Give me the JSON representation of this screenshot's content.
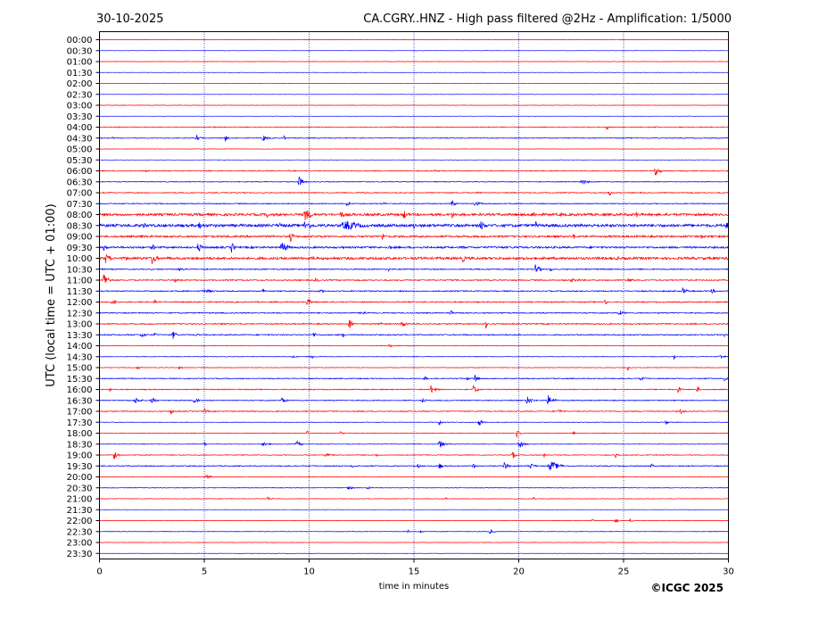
{
  "chart_data": {
    "type": "line",
    "date": "30-10-2025",
    "title": "CA.CGRY..HNZ - High pass filtered @2Hz - Amplification: 1/5000",
    "xlabel": "time in minutes",
    "ylabel": "UTC (local time = UTC + 01:00)",
    "copyright": "©ICGC 2025",
    "xlim": [
      0,
      30
    ],
    "x_ticks": [
      "0",
      "5",
      "10",
      "15",
      "20",
      "25",
      "30"
    ],
    "row_labels": [
      "00:00",
      "00:30",
      "01:00",
      "01:30",
      "02:00",
      "02:30",
      "03:00",
      "03:30",
      "04:00",
      "04:30",
      "05:00",
      "05:30",
      "06:00",
      "06:30",
      "07:00",
      "07:30",
      "08:00",
      "08:30",
      "09:00",
      "09:30",
      "10:00",
      "10:30",
      "11:00",
      "11:30",
      "12:00",
      "12:30",
      "13:00",
      "13:30",
      "14:00",
      "14:30",
      "15:00",
      "15:30",
      "16:00",
      "16:30",
      "17:00",
      "17:30",
      "18:00",
      "18:30",
      "19:00",
      "19:30",
      "20:00",
      "20:30",
      "21:00",
      "21:30",
      "22:00",
      "22:30",
      "23:00",
      "23:30"
    ],
    "trace_colors": [
      "#ff0000",
      "#0000ff"
    ],
    "grid": "vertical dotted at 5-minute intervals",
    "traces": [
      {
        "label": "00:00",
        "color": "#ff0000",
        "noise": 0.2,
        "events": []
      },
      {
        "label": "00:30",
        "color": "#0000ff",
        "noise": 0.2,
        "events": []
      },
      {
        "label": "01:00",
        "color": "#ff0000",
        "noise": 0.2,
        "events": []
      },
      {
        "label": "01:30",
        "color": "#0000ff",
        "noise": 0.2,
        "events": []
      },
      {
        "label": "02:00",
        "color": "#ff0000",
        "noise": 0.2,
        "events": []
      },
      {
        "label": "02:30",
        "color": "#0000ff",
        "noise": 0.2,
        "events": []
      },
      {
        "label": "03:00",
        "color": "#ff0000",
        "noise": 0.2,
        "events": []
      },
      {
        "label": "03:30",
        "color": "#0000ff",
        "noise": 0.2,
        "events": []
      },
      {
        "label": "04:00",
        "color": "#ff0000",
        "noise": 0.4,
        "events": [
          [
            0.9,
            0.3,
            1
          ],
          [
            5.5,
            0.3,
            1
          ],
          [
            14.0,
            0.5,
            1
          ],
          [
            24.2,
            0.1,
            4
          ],
          [
            26.5,
            0.3,
            1
          ]
        ]
      },
      {
        "label": "04:30",
        "color": "#0000ff",
        "noise": 0.4,
        "events": [
          [
            0.6,
            0.3,
            1
          ],
          [
            4.6,
            0.3,
            4
          ],
          [
            6.0,
            0.2,
            4
          ],
          [
            7.8,
            0.3,
            4
          ],
          [
            8.8,
            0.1,
            5
          ]
        ]
      },
      {
        "label": "05:00",
        "color": "#ff0000",
        "noise": 0.2,
        "events": []
      },
      {
        "label": "05:30",
        "color": "#0000ff",
        "noise": 0.2,
        "events": []
      },
      {
        "label": "06:00",
        "color": "#ff0000",
        "noise": 0.5,
        "events": [
          [
            2.2,
            0.6,
            1
          ],
          [
            5.2,
            0.3,
            1
          ],
          [
            9.0,
            0.4,
            1
          ],
          [
            16.0,
            1.0,
            1
          ],
          [
            26.5,
            0.4,
            5
          ]
        ]
      },
      {
        "label": "06:30",
        "color": "#0000ff",
        "noise": 0.4,
        "events": [
          [
            9.5,
            0.3,
            7
          ],
          [
            23.0,
            0.5,
            3
          ]
        ]
      },
      {
        "label": "07:00",
        "color": "#ff0000",
        "noise": 0.5,
        "events": [
          [
            12.5,
            1.0,
            1
          ],
          [
            18.0,
            1.0,
            1
          ],
          [
            24.3,
            0.2,
            5
          ]
        ]
      },
      {
        "label": "07:30",
        "color": "#0000ff",
        "noise": 0.5,
        "events": [
          [
            11.8,
            0.2,
            4
          ],
          [
            13.5,
            0.3,
            2
          ],
          [
            16.8,
            0.2,
            6
          ],
          [
            17.9,
            0.5,
            3
          ]
        ]
      },
      {
        "label": "08:00",
        "color": "#ff0000",
        "noise": 1.3,
        "events": [
          [
            8.0,
            0.2,
            4
          ],
          [
            9.8,
            0.5,
            8
          ],
          [
            11.5,
            0.3,
            5
          ],
          [
            14.5,
            0.3,
            6
          ],
          [
            16.8,
            0.3,
            5
          ],
          [
            20.7,
            0.2,
            5
          ],
          [
            22.0,
            0.2,
            4
          ],
          [
            25.6,
            0.2,
            4
          ]
        ]
      },
      {
        "label": "08:30",
        "color": "#0000ff",
        "noise": 1.5,
        "events": [
          [
            2.1,
            0.3,
            4
          ],
          [
            4.7,
            0.5,
            5
          ],
          [
            8.6,
            0.2,
            4
          ],
          [
            9.8,
            0.5,
            6
          ],
          [
            11.7,
            1.3,
            6
          ],
          [
            15.0,
            0.2,
            5
          ],
          [
            18.2,
            0.3,
            7
          ],
          [
            20.8,
            0.1,
            9
          ],
          [
            29.9,
            0.2,
            5
          ]
        ]
      },
      {
        "label": "09:00",
        "color": "#ff0000",
        "noise": 1.0,
        "events": [
          [
            2.0,
            0.2,
            4
          ],
          [
            9.1,
            0.3,
            6
          ],
          [
            13.5,
            0.2,
            5
          ],
          [
            22.6,
            0.2,
            4
          ],
          [
            28.7,
            0.2,
            4
          ]
        ]
      },
      {
        "label": "09:30",
        "color": "#0000ff",
        "noise": 1.0,
        "events": [
          [
            0.2,
            0.3,
            4
          ],
          [
            2.5,
            0.3,
            4
          ],
          [
            4.7,
            0.3,
            6
          ],
          [
            6.3,
            0.2,
            7
          ],
          [
            8.7,
            0.4,
            8
          ],
          [
            13.8,
            0.2,
            4
          ],
          [
            17.3,
            0.2,
            3
          ],
          [
            25.0,
            1.5,
            1
          ]
        ]
      },
      {
        "label": "10:00",
        "color": "#ff0000",
        "noise": 1.3,
        "events": [
          [
            0.3,
            0.4,
            6
          ],
          [
            1.3,
            0.2,
            4
          ],
          [
            2.5,
            0.3,
            8
          ],
          [
            3.3,
            0.2,
            3
          ],
          [
            10.2,
            0.2,
            3
          ],
          [
            17.3,
            0.3,
            5
          ],
          [
            20.3,
            0.2,
            4
          ],
          [
            24.7,
            0.2,
            4
          ],
          [
            29.9,
            0.2,
            4
          ]
        ]
      },
      {
        "label": "10:30",
        "color": "#0000ff",
        "noise": 0.6,
        "events": [
          [
            3.8,
            0.5,
            2
          ],
          [
            13.8,
            0.2,
            3
          ],
          [
            20.8,
            0.3,
            7
          ],
          [
            21.5,
            0.2,
            3
          ]
        ]
      },
      {
        "label": "11:00",
        "color": "#ff0000",
        "noise": 0.6,
        "events": [
          [
            0.2,
            0.3,
            10
          ],
          [
            3.6,
            0.2,
            3
          ],
          [
            10.3,
            0.6,
            2
          ],
          [
            22.5,
            1.0,
            2
          ],
          [
            25.2,
            0.4,
            3
          ]
        ]
      },
      {
        "label": "11:30",
        "color": "#0000ff",
        "noise": 0.6,
        "events": [
          [
            5.0,
            1.0,
            2
          ],
          [
            7.8,
            0.2,
            3
          ],
          [
            10.5,
            0.5,
            2
          ],
          [
            27.8,
            0.3,
            5
          ],
          [
            29.2,
            0.3,
            3
          ]
        ]
      },
      {
        "label": "12:00",
        "color": "#ff0000",
        "noise": 0.6,
        "events": [
          [
            0.6,
            0.3,
            5
          ],
          [
            2.6,
            0.2,
            3
          ],
          [
            9.9,
            0.3,
            5
          ],
          [
            24.1,
            0.2,
            4
          ]
        ]
      },
      {
        "label": "12:30",
        "color": "#0000ff",
        "noise": 0.6,
        "events": [
          [
            12.5,
            0.4,
            3
          ],
          [
            16.7,
            0.2,
            5
          ],
          [
            24.8,
            0.4,
            3
          ]
        ]
      },
      {
        "label": "13:00",
        "color": "#ff0000",
        "noise": 0.6,
        "events": [
          [
            11.9,
            0.2,
            8
          ],
          [
            13.4,
            0.2,
            3
          ],
          [
            14.4,
            0.4,
            4
          ],
          [
            18.4,
            0.1,
            9
          ]
        ]
      },
      {
        "label": "13:30",
        "color": "#0000ff",
        "noise": 0.6,
        "events": [
          [
            2.0,
            0.3,
            4
          ],
          [
            2.6,
            0.2,
            3
          ],
          [
            3.5,
            0.3,
            5
          ],
          [
            4.6,
            0.2,
            3
          ],
          [
            10.2,
            0.2,
            4
          ],
          [
            11.6,
            0.2,
            3
          ],
          [
            29.8,
            0.2,
            2
          ]
        ]
      },
      {
        "label": "14:00",
        "color": "#ff0000",
        "noise": 0.3,
        "events": [
          [
            13.8,
            0.5,
            2
          ]
        ]
      },
      {
        "label": "14:30",
        "color": "#0000ff",
        "noise": 0.3,
        "events": [
          [
            9.2,
            0.3,
            2
          ],
          [
            10.1,
            0.2,
            4
          ],
          [
            27.4,
            0.1,
            5
          ],
          [
            29.6,
            0.3,
            3
          ]
        ]
      },
      {
        "label": "15:00",
        "color": "#ff0000",
        "noise": 0.3,
        "events": [
          [
            1.8,
            0.3,
            2
          ],
          [
            3.8,
            0.2,
            2
          ],
          [
            25.2,
            0.1,
            4
          ]
        ]
      },
      {
        "label": "15:30",
        "color": "#0000ff",
        "noise": 0.5,
        "events": [
          [
            15.5,
            0.2,
            3
          ],
          [
            17.5,
            0.2,
            4
          ],
          [
            17.9,
            0.2,
            6
          ],
          [
            25.8,
            0.3,
            3
          ],
          [
            29.8,
            0.2,
            4
          ]
        ]
      },
      {
        "label": "16:00",
        "color": "#ff0000",
        "noise": 0.5,
        "events": [
          [
            0.5,
            0.1,
            4
          ],
          [
            13.4,
            0.1,
            4
          ],
          [
            15.8,
            0.4,
            5
          ],
          [
            17.8,
            0.3,
            6
          ],
          [
            27.6,
            0.2,
            5
          ],
          [
            28.5,
            0.2,
            4
          ]
        ]
      },
      {
        "label": "16:30",
        "color": "#0000ff",
        "noise": 0.5,
        "events": [
          [
            1.7,
            0.4,
            4
          ],
          [
            2.5,
            0.3,
            4
          ],
          [
            4.5,
            0.4,
            3
          ],
          [
            8.7,
            0.3,
            4
          ],
          [
            15.4,
            0.2,
            4
          ],
          [
            20.4,
            0.4,
            5
          ],
          [
            21.4,
            0.4,
            6
          ]
        ]
      },
      {
        "label": "17:00",
        "color": "#ff0000",
        "noise": 0.5,
        "events": [
          [
            3.4,
            0.1,
            7
          ],
          [
            5.0,
            0.2,
            4
          ],
          [
            21.9,
            0.3,
            3
          ],
          [
            27.7,
            0.3,
            3
          ]
        ]
      },
      {
        "label": "17:30",
        "color": "#0000ff",
        "noise": 0.3,
        "events": [
          [
            16.2,
            0.2,
            4
          ],
          [
            18.1,
            0.3,
            4
          ],
          [
            27.0,
            0.2,
            3
          ]
        ]
      },
      {
        "label": "18:00",
        "color": "#ff0000",
        "noise": 0.3,
        "events": [
          [
            9.9,
            0.1,
            5
          ],
          [
            11.5,
            0.2,
            3
          ],
          [
            19.9,
            0.2,
            6
          ],
          [
            22.6,
            0.2,
            2
          ]
        ]
      },
      {
        "label": "18:30",
        "color": "#0000ff",
        "noise": 0.3,
        "events": [
          [
            5.0,
            0.1,
            4
          ],
          [
            7.8,
            0.5,
            2
          ],
          [
            9.4,
            0.3,
            4
          ],
          [
            16.2,
            0.4,
            5
          ],
          [
            20.0,
            0.3,
            6
          ]
        ]
      },
      {
        "label": "19:00",
        "color": "#ff0000",
        "noise": 0.4,
        "events": [
          [
            0.7,
            0.2,
            8
          ],
          [
            10.8,
            0.5,
            2
          ],
          [
            13.2,
            0.2,
            2
          ],
          [
            19.7,
            0.2,
            5
          ],
          [
            21.2,
            0.2,
            3
          ],
          [
            24.6,
            0.2,
            4
          ]
        ]
      },
      {
        "label": "19:30",
        "color": "#0000ff",
        "noise": 0.5,
        "events": [
          [
            12.0,
            0.2,
            3
          ],
          [
            15.2,
            0.2,
            3
          ],
          [
            16.2,
            0.3,
            4
          ],
          [
            17.8,
            0.2,
            4
          ],
          [
            19.3,
            0.3,
            5
          ],
          [
            20.5,
            0.4,
            4
          ],
          [
            21.5,
            0.7,
            6
          ],
          [
            26.3,
            0.2,
            3
          ]
        ]
      },
      {
        "label": "20:00",
        "color": "#ff0000",
        "noise": 0.3,
        "events": [
          [
            5.1,
            0.3,
            3
          ]
        ]
      },
      {
        "label": "20:30",
        "color": "#0000ff",
        "noise": 0.3,
        "events": [
          [
            11.8,
            0.6,
            2
          ],
          [
            12.8,
            0.3,
            2
          ]
        ]
      },
      {
        "label": "21:00",
        "color": "#ff0000",
        "noise": 0.3,
        "events": [
          [
            8.0,
            0.3,
            3
          ],
          [
            16.5,
            0.1,
            3
          ],
          [
            20.7,
            0.1,
            3
          ]
        ]
      },
      {
        "label": "21:30",
        "color": "#0000ff",
        "noise": 0.2,
        "events": []
      },
      {
        "label": "22:00",
        "color": "#ff0000",
        "noise": 0.2,
        "events": [
          [
            23.5,
            0.2,
            2
          ],
          [
            24.6,
            0.2,
            3
          ],
          [
            25.3,
            0.3,
            2
          ]
        ]
      },
      {
        "label": "22:30",
        "color": "#0000ff",
        "noise": 0.3,
        "events": [
          [
            14.7,
            0.1,
            3
          ],
          [
            15.3,
            0.2,
            2
          ],
          [
            18.6,
            0.3,
            3
          ]
        ]
      },
      {
        "label": "23:00",
        "color": "#ff0000",
        "noise": 0.2,
        "events": []
      },
      {
        "label": "23:30",
        "color": "#0000ff",
        "noise": 0.2,
        "events": []
      }
    ]
  }
}
